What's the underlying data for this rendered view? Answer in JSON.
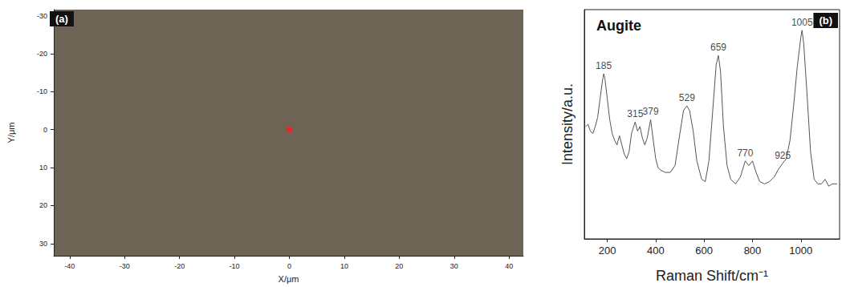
{
  "chart_data": [
    {
      "panel": "(a)",
      "type": "scatter",
      "x_label": "X/μm",
      "y_label": "Y/μm",
      "x": [
        0
      ],
      "y": [
        0
      ],
      "color": "#ff1a1a",
      "marker": "circle",
      "xlim": [
        -42.9,
        42.6
      ],
      "ylim": [
        33.2,
        -31.6
      ],
      "xticks": [
        -40,
        -30,
        -20,
        -10,
        0,
        10,
        20,
        30,
        40
      ],
      "yticks": [
        -30,
        -20,
        -10,
        0,
        10,
        20,
        30
      ]
    },
    {
      "panel": "(b)",
      "type": "line",
      "title": "Augite",
      "x_label": "Raman Shift/cm⁻¹",
      "y_label": "Intensity/a.u.",
      "x": [
        110,
        120,
        130,
        140,
        150,
        160,
        170,
        180,
        185,
        190,
        200,
        210,
        220,
        230,
        240,
        250,
        260,
        270,
        280,
        290,
        300,
        315,
        325,
        335,
        345,
        355,
        365,
        379,
        390,
        400,
        410,
        420,
        440,
        460,
        480,
        500,
        515,
        529,
        540,
        555,
        570,
        590,
        605,
        620,
        635,
        650,
        659,
        668,
        680,
        695,
        710,
        730,
        750,
        770,
        785,
        800,
        815,
        830,
        850,
        870,
        890,
        905,
        925,
        940,
        955,
        970,
        985,
        1000,
        1005,
        1012,
        1025,
        1040,
        1055,
        1070,
        1085,
        1100,
        1115,
        1130,
        1150
      ],
      "values": [
        49,
        50,
        47,
        46,
        49,
        53,
        61,
        69,
        72,
        70,
        61,
        52,
        46,
        43,
        41,
        45,
        41,
        37,
        35,
        38,
        46,
        51,
        47,
        49,
        44,
        41,
        44,
        52,
        43,
        35,
        31,
        30,
        29,
        29,
        32,
        46,
        56,
        58,
        56,
        47,
        34,
        26,
        25,
        34,
        55,
        76,
        80,
        73,
        49,
        32,
        26,
        24,
        27,
        34,
        32,
        34,
        29,
        25,
        24,
        25,
        27,
        30,
        33,
        35,
        43,
        58,
        75,
        88,
        91,
        85,
        64,
        38,
        26,
        24,
        24,
        26,
        23,
        24,
        24
      ],
      "color": "#555555",
      "xlim": [
        105,
        1160
      ],
      "ylim": [
        0,
        100
      ],
      "xticks": [
        200,
        400,
        600,
        800,
        1000
      ],
      "tick_labels": "x",
      "annotations": [
        {
          "text": "185",
          "x": 185,
          "y": 72
        },
        {
          "text": "315",
          "x": 315,
          "y": 51
        },
        {
          "text": "379",
          "x": 379,
          "y": 52
        },
        {
          "text": "529",
          "x": 529,
          "y": 58
        },
        {
          "text": "659",
          "x": 659,
          "y": 80
        },
        {
          "text": "770",
          "x": 770,
          "y": 34
        },
        {
          "text": "925",
          "x": 925,
          "y": 33
        },
        {
          "text": "1005",
          "x": 1005,
          "y": 91
        }
      ]
    }
  ]
}
